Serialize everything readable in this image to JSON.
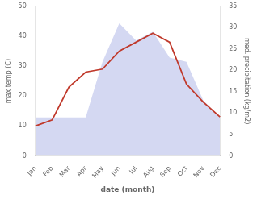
{
  "chart_data": {
    "type": "line",
    "categories": [
      "Jan",
      "Feb",
      "Mar",
      "Apr",
      "May",
      "Jun",
      "Jul",
      "Aug",
      "Sep",
      "Oct",
      "Nov",
      "Dec"
    ],
    "series": [
      {
        "type": "area",
        "color": "#b0b8e8",
        "axis": "y2",
        "values": [
          9,
          9,
          9,
          9,
          22,
          31,
          27,
          29,
          23,
          22,
          13,
          9
        ]
      },
      {
        "type": "line",
        "color": "#c0392b",
        "values": [
          10,
          12,
          23,
          28,
          29,
          35,
          38,
          41,
          38,
          24,
          18,
          13
        ]
      }
    ],
    "xlabel": "date (month)",
    "ylabel": "max temp (C)",
    "y2label": "med. precipitation (kg/m2)",
    "ylim": [
      0,
      50
    ],
    "yticks": [
      0,
      10,
      20,
      30,
      40,
      50
    ],
    "y2lim": [
      0,
      35
    ],
    "y2ticks": [
      0,
      5,
      10,
      15,
      20,
      25,
      30,
      35
    ],
    "grid": false
  }
}
